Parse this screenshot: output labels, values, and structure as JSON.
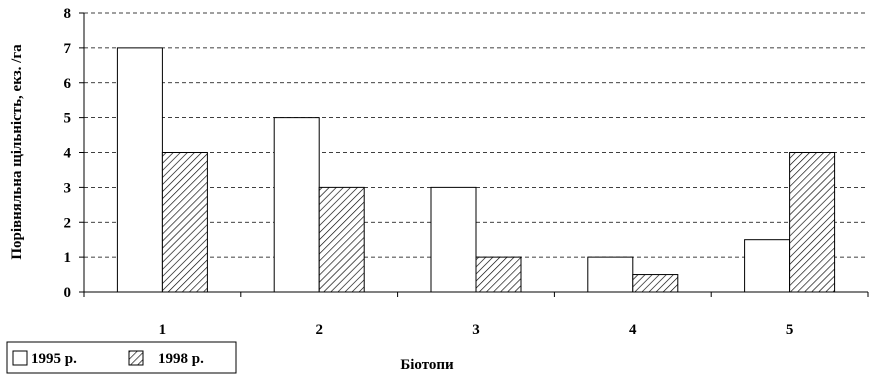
{
  "chart_data": {
    "type": "bar",
    "title": "",
    "xlabel": "Біотопи",
    "ylabel": "Порівняльна щільність, екз. /га",
    "categories": [
      "1",
      "2",
      "3",
      "4",
      "5"
    ],
    "series": [
      {
        "name": "1995 р.",
        "values": [
          7,
          5,
          3,
          1,
          1.5
        ],
        "fill": "#ffffff",
        "pattern": "none"
      },
      {
        "name": "1998 р.",
        "values": [
          4,
          3,
          1,
          0.5,
          4
        ],
        "fill": "#ffffff",
        "pattern": "diagonal-hatch"
      }
    ],
    "ylim": [
      0,
      8
    ],
    "yticks": [
      "0",
      "1",
      "2",
      "3",
      "4",
      "5",
      "6",
      "7",
      "8"
    ],
    "grid": true,
    "legend_position": "bottom-left"
  }
}
